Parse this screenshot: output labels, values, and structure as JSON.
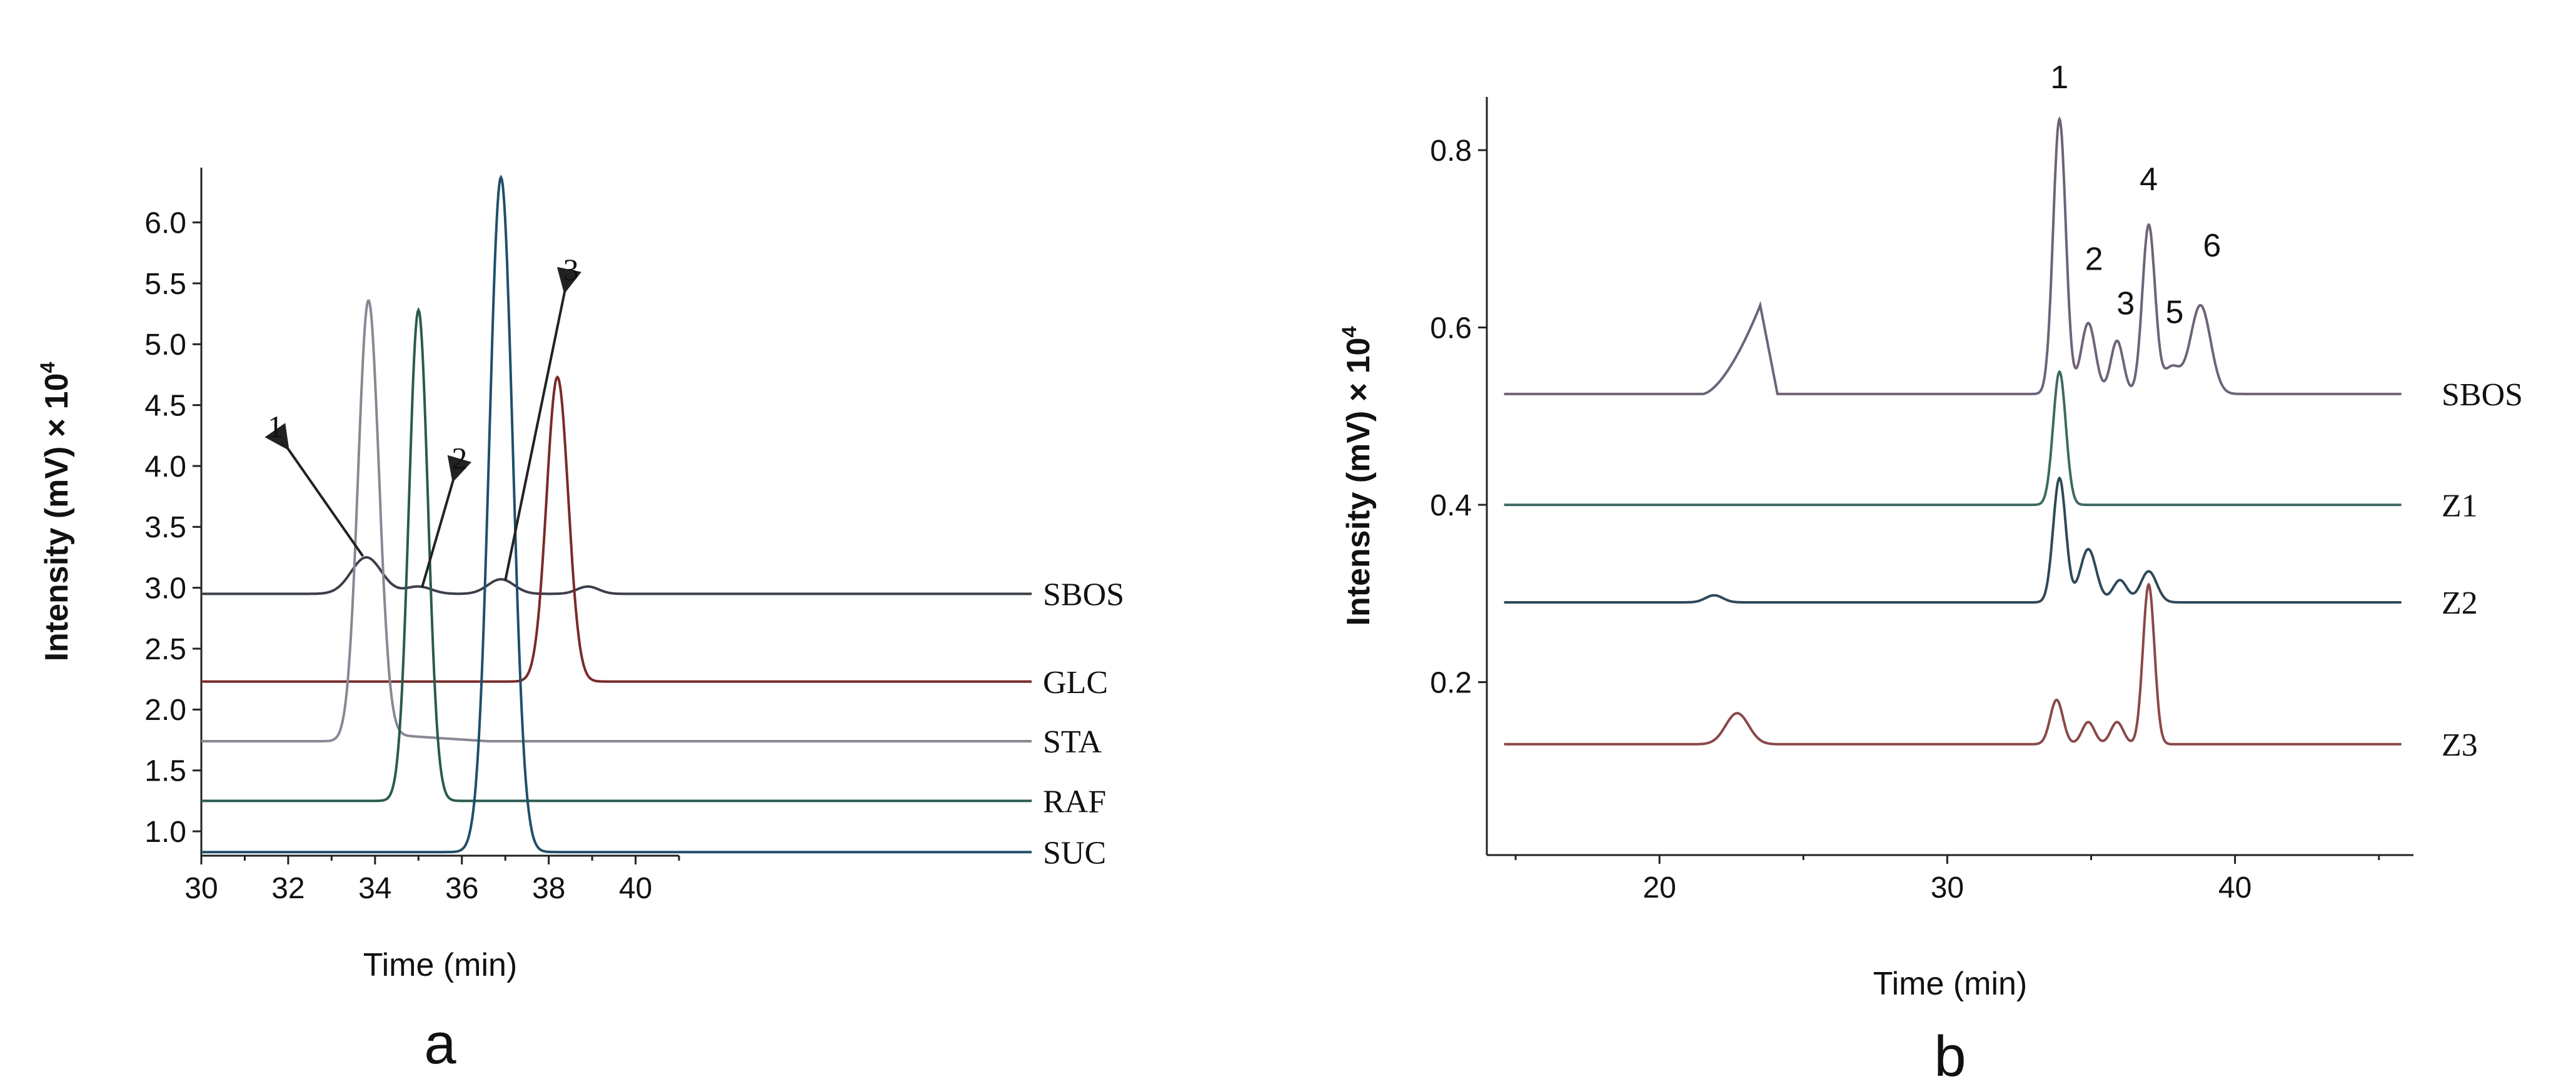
{
  "chart_data": [
    {
      "type": "line",
      "panel_label": "a",
      "xlabel": "Time (min)",
      "ylabel": "Intensity (mV) × 10",
      "ylabel_exponent": "4",
      "xlim": [
        30,
        41
      ],
      "ylim": [
        0.8,
        6.45
      ],
      "xticks": [
        30,
        32,
        34,
        36,
        38,
        40
      ],
      "xtick_labels": [
        "30",
        "32",
        "34",
        "36",
        "38",
        "40"
      ],
      "yticks": [
        1.0,
        1.5,
        2.0,
        2.5,
        3.0,
        3.5,
        4.0,
        4.5,
        5.0,
        5.5,
        6.0
      ],
      "ytick_labels": [
        "1.0",
        "1.5",
        "2.0",
        "2.5",
        "3.0",
        "3.5",
        "4.0",
        "4.5",
        "5.0",
        "5.5",
        "6.0"
      ],
      "series": [
        {
          "name": "SBOS",
          "color": "#3a3f4a",
          "baseline": 2.95,
          "peaks": [
            [
              33.8,
              0.3,
              0.35
            ],
            [
              35.0,
              0.06,
              0.3
            ],
            [
              36.9,
              0.12,
              0.3
            ],
            [
              38.9,
              0.06,
              0.25
            ]
          ]
        },
        {
          "name": "GLC",
          "color": "#7a2a28",
          "baseline": 2.23,
          "peaks": [
            [
              38.2,
              2.5,
              0.25
            ]
          ]
        },
        {
          "name": "STA",
          "color": "#8a8694",
          "baseline": 1.74,
          "peaks": [
            [
              33.85,
              3.62,
              0.24
            ]
          ],
          "tail": [
            34.0,
            1.8,
            36.6
          ]
        },
        {
          "name": "RAF",
          "color": "#2a5a50",
          "baseline": 1.25,
          "peaks": [
            [
              35.0,
              4.03,
              0.22
            ]
          ]
        },
        {
          "name": "SUC",
          "color": "#1f4f6a",
          "baseline": 0.83,
          "peaks": [
            [
              36.9,
              5.54,
              0.27
            ]
          ]
        }
      ],
      "annotations": [
        {
          "label": "1",
          "target": [
            33.72,
            3.26
          ]
        },
        {
          "label": "2",
          "target": [
            35.08,
            3.0
          ]
        },
        {
          "label": "3",
          "target": [
            37.0,
            3.06
          ]
        }
      ]
    },
    {
      "type": "line",
      "panel_label": "b",
      "xlabel": "Time (min)",
      "ylabel": "Intensity (mV) × 10",
      "ylabel_exponent": "4",
      "xlim": [
        14,
        46.2
      ],
      "ylim": [
        0.005,
        0.86
      ],
      "xticks": [
        20,
        30,
        40
      ],
      "xtick_labels": [
        "20",
        "30",
        "40"
      ],
      "yticks": [
        0.2,
        0.4,
        0.6,
        0.8
      ],
      "ytick_labels": [
        "0.2",
        "0.4",
        "0.6",
        "0.8"
      ],
      "series": [
        {
          "name": "SBOS",
          "color": "#6e6378",
          "baseline": 0.525,
          "peaks": [
            [
              33.9,
              0.31,
              0.22
            ],
            [
              34.9,
              0.08,
              0.25
            ],
            [
              35.9,
              0.06,
              0.22
            ],
            [
              37.0,
              0.19,
              0.22
            ],
            [
              37.8,
              0.03,
              0.3
            ],
            [
              38.8,
              0.1,
              0.35
            ]
          ],
          "ramps": [
            [
              21.5,
              23.5,
              24.1,
              0.1
            ]
          ]
        },
        {
          "name": "Z1",
          "color": "#3e6a62",
          "baseline": 0.4,
          "peaks": [
            [
              33.9,
              0.15,
              0.22
            ]
          ]
        },
        {
          "name": "Z2",
          "color": "#2e4858",
          "baseline": 0.29,
          "peaks": [
            [
              21.9,
              0.008,
              0.3
            ],
            [
              33.9,
              0.14,
              0.22
            ],
            [
              34.9,
              0.06,
              0.28
            ],
            [
              36.0,
              0.025,
              0.25
            ],
            [
              37.0,
              0.035,
              0.28
            ]
          ]
        },
        {
          "name": "Z3",
          "color": "#8a4848",
          "baseline": 0.13,
          "peaks": [
            [
              22.7,
              0.035,
              0.4
            ],
            [
              33.8,
              0.05,
              0.22
            ],
            [
              34.9,
              0.025,
              0.22
            ],
            [
              35.9,
              0.025,
              0.22
            ],
            [
              37.0,
              0.18,
              0.2
            ]
          ]
        }
      ],
      "peak_labels": [
        {
          "label": "1",
          "x": 33.9,
          "y": 0.87
        },
        {
          "label": "2",
          "x": 35.1,
          "y": 0.665
        },
        {
          "label": "3",
          "x": 36.2,
          "y": 0.615
        },
        {
          "label": "4",
          "x": 37.0,
          "y": 0.755
        },
        {
          "label": "5",
          "x": 37.9,
          "y": 0.605
        },
        {
          "label": "6",
          "x": 39.2,
          "y": 0.68
        }
      ]
    }
  ]
}
